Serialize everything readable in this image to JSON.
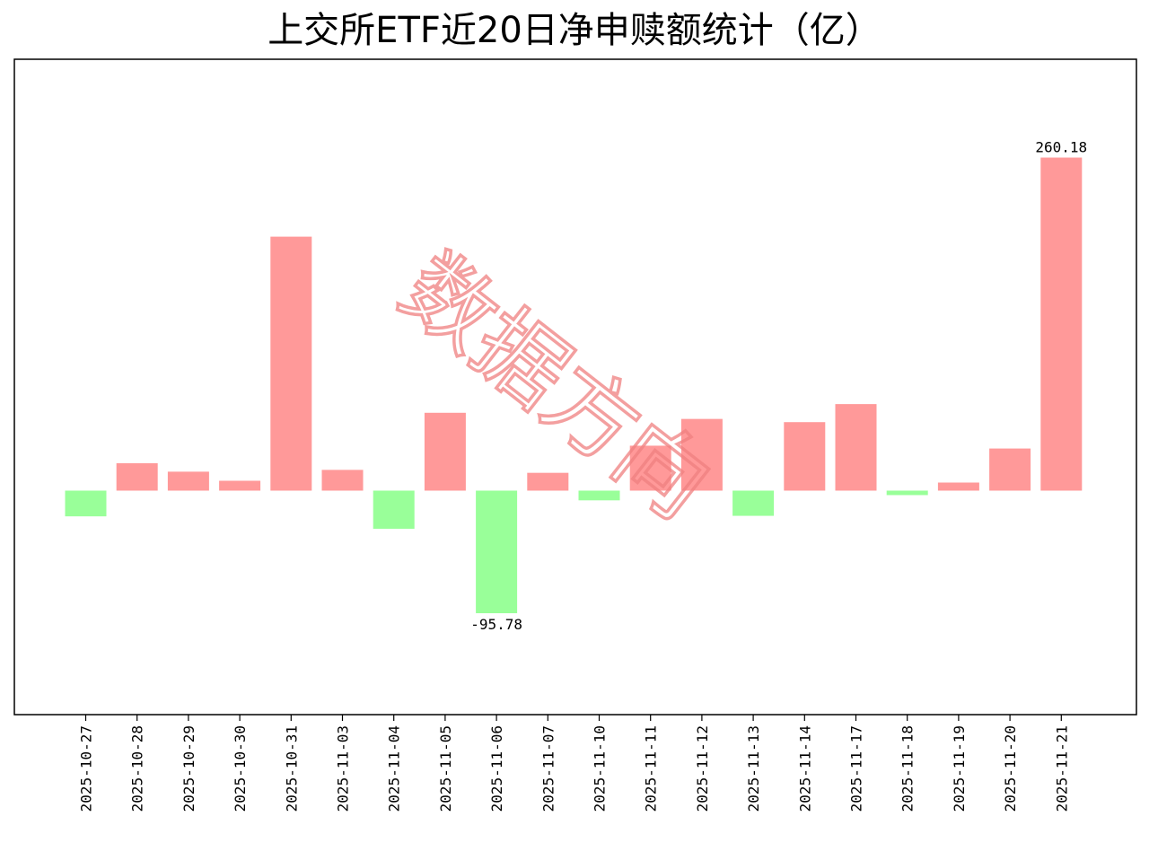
{
  "chart_data": {
    "type": "bar",
    "title": "上交所ETF近20日净申赎额统计（亿）",
    "categories": [
      "2025-10-27",
      "2025-10-28",
      "2025-10-29",
      "2025-10-30",
      "2025-10-31",
      "2025-11-03",
      "2025-11-04",
      "2025-11-05",
      "2025-11-06",
      "2025-11-07",
      "2025-11-10",
      "2025-11-11",
      "2025-11-12",
      "2025-11-13",
      "2025-11-14",
      "2025-11-17",
      "2025-11-18",
      "2025-11-19",
      "2025-11-20",
      "2025-11-21"
    ],
    "values": [
      -20.1,
      21.4,
      14.8,
      7.7,
      198.4,
      16.2,
      -29.8,
      60.8,
      -95.78,
      13.9,
      -7.6,
      35.1,
      56.0,
      -19.7,
      53.5,
      67.6,
      -3.5,
      6.3,
      32.9,
      260.18
    ],
    "data_labels": [
      {
        "category": "2025-11-06",
        "text": "-95.78"
      },
      {
        "category": "2025-11-21",
        "text": "260.18"
      }
    ],
    "ylim": [
      -175,
      337
    ],
    "xlabel": "",
    "ylabel": "",
    "grid": false,
    "colors": {
      "positive": "#ff9999",
      "negative": "#99ff99"
    }
  },
  "watermark": {
    "text": "数据方向",
    "color": "#f08080"
  }
}
